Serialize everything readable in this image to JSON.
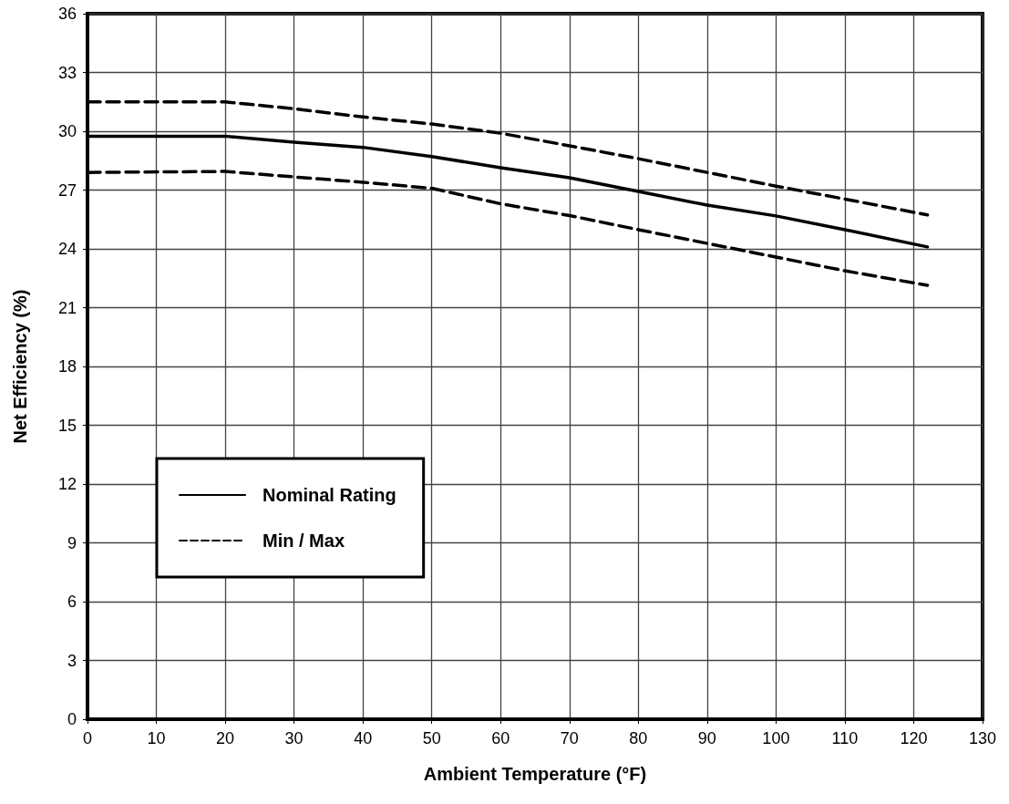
{
  "chart_data": {
    "type": "line",
    "xlabel": "Ambient Temperature (°F)",
    "ylabel": "Net Efficiency (%)",
    "x": [
      0,
      20,
      30,
      40,
      50,
      60,
      70,
      80,
      90,
      100,
      110,
      122
    ],
    "series": [
      {
        "name": "Nominal Rating",
        "color": "#000000",
        "line_style": "solid",
        "values": [
          29.75,
          29.75,
          29.44,
          29.18,
          28.71,
          28.14,
          27.63,
          26.93,
          26.23,
          25.68,
          24.98,
          24.1
        ]
      },
      {
        "name": "Min / Max",
        "color": "#000000",
        "line_style": "dashed",
        "values": [
          31.5,
          31.5,
          31.15,
          30.73,
          30.37,
          29.9,
          29.26,
          28.6,
          27.9,
          27.2,
          26.54,
          25.73
        ]
      },
      {
        "color": "#000000",
        "line_style": "dashed",
        "values": [
          27.9,
          27.95,
          27.67,
          27.4,
          27.09,
          26.3,
          25.7,
          24.98,
          24.28,
          23.58,
          22.88,
          22.14
        ]
      }
    ],
    "xlim": [
      0,
      130
    ],
    "xticks": [
      0,
      10,
      20,
      30,
      40,
      50,
      60,
      70,
      80,
      90,
      100,
      110,
      120,
      130
    ],
    "ylim": [
      0,
      36
    ],
    "yticks": [
      0,
      3,
      6,
      9,
      12,
      15,
      18,
      21,
      24,
      27,
      30,
      33,
      36
    ],
    "grid": true,
    "legend": "bottom left",
    "marker": "none"
  }
}
